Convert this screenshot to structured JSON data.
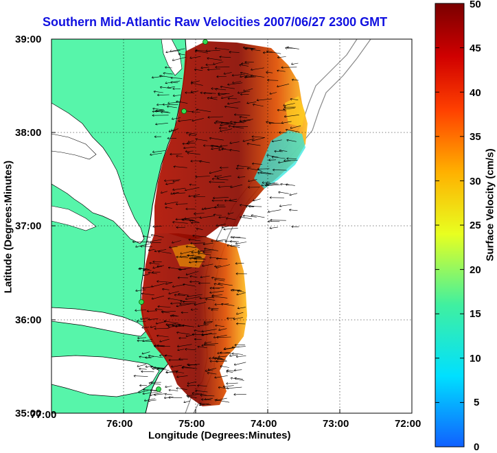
{
  "title": "Southern Mid-Atlantic Raw Velocities 2007/06/27 2300 GMT",
  "xlabel": "Longitude (Degrees:Minutes)",
  "ylabel": "Latitude (Degrees:Minutes)",
  "x_ticks": [
    "77:00",
    "76:00",
    "75:00",
    "74:00",
    "73:00",
    "72:00"
  ],
  "y_ticks": [
    "39:00",
    "38:00",
    "37:00",
    "36:00",
    "35:00"
  ],
  "colorbar": {
    "label": "Surface Velocity (cm/s)",
    "ticks": [
      "50",
      "45",
      "40",
      "35",
      "30",
      "25",
      "20",
      "15",
      "10",
      "5",
      "0"
    ],
    "range": [
      0,
      50
    ]
  },
  "colors": {
    "land": "#57f5aa",
    "water": "#ffffff",
    "title": "#1010e0",
    "station": "#33dd55"
  }
}
